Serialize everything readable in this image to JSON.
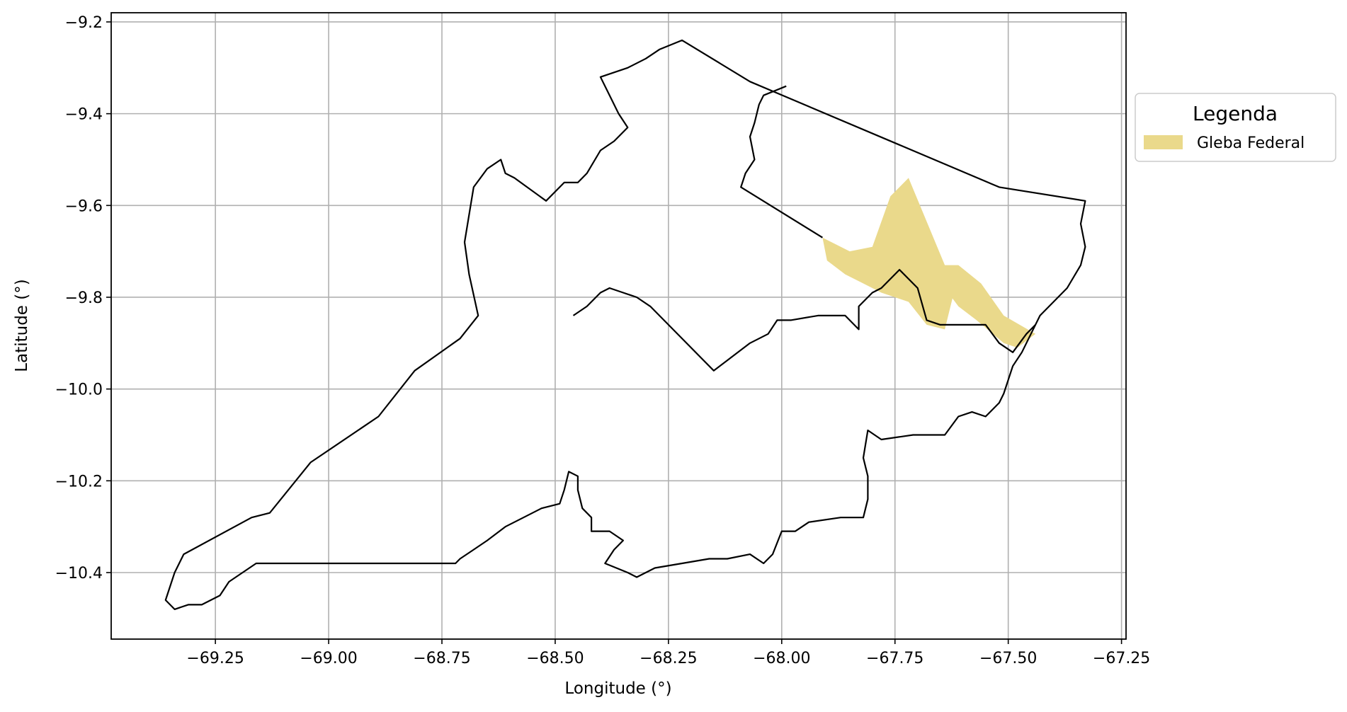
{
  "chart_data": {
    "type": "map",
    "xlabel": "Longitude (°)",
    "ylabel": "Latitude (°)",
    "xlim": [
      -69.48,
      -67.24
    ],
    "ylim": [
      -10.545,
      -9.18
    ],
    "x_ticks": [
      -69.25,
      -69.0,
      -68.75,
      -68.5,
      -68.25,
      -68.0,
      -67.75,
      -67.5,
      -67.25
    ],
    "x_tick_labels": [
      "−69.25",
      "−69.00",
      "−68.75",
      "−68.50",
      "−68.25",
      "−68.00",
      "−67.75",
      "−67.50",
      "−67.25"
    ],
    "y_ticks": [
      -9.2,
      -9.4,
      -9.6,
      -9.8,
      -10.0,
      -10.2,
      -10.4
    ],
    "y_tick_labels": [
      "−9.2",
      "−9.4",
      "−9.6",
      "−9.8",
      "−10.0",
      "−10.2",
      "−10.4"
    ],
    "grid": true,
    "legend": {
      "title": "Legenda",
      "placement": "outside-right-top",
      "entries": [
        {
          "label": "Gleba Federal",
          "color": "#ead98b"
        }
      ]
    },
    "boundary": [
      [
        -69.36,
        -10.46
      ],
      [
        -69.34,
        -10.4
      ],
      [
        -69.32,
        -10.36
      ],
      [
        -69.17,
        -10.28
      ],
      [
        -69.13,
        -10.27
      ],
      [
        -69.04,
        -10.16
      ],
      [
        -68.89,
        -10.06
      ],
      [
        -68.81,
        -9.96
      ],
      [
        -68.71,
        -9.89
      ],
      [
        -68.67,
        -9.84
      ],
      [
        -68.69,
        -9.75
      ],
      [
        -68.7,
        -9.68
      ],
      [
        -68.68,
        -9.56
      ],
      [
        -68.65,
        -9.52
      ],
      [
        -68.62,
        -9.5
      ],
      [
        -68.61,
        -9.53
      ],
      [
        -68.59,
        -9.54
      ],
      [
        -68.52,
        -9.59
      ],
      [
        -68.48,
        -9.55
      ],
      [
        -68.45,
        -9.55
      ],
      [
        -68.43,
        -9.53
      ],
      [
        -68.4,
        -9.48
      ],
      [
        -68.37,
        -9.46
      ],
      [
        -68.34,
        -9.43
      ],
      [
        -68.36,
        -9.4
      ],
      [
        -68.4,
        -9.32
      ],
      [
        -68.34,
        -9.3
      ],
      [
        -68.3,
        -9.28
      ],
      [
        -68.27,
        -9.26
      ],
      [
        -68.22,
        -9.24
      ],
      [
        -68.07,
        -9.33
      ],
      [
        -67.52,
        -9.56
      ],
      [
        -67.33,
        -9.59
      ],
      [
        -67.34,
        -9.64
      ],
      [
        -67.33,
        -9.69
      ],
      [
        -67.34,
        -9.73
      ],
      [
        -67.37,
        -9.78
      ],
      [
        -67.4,
        -9.81
      ],
      [
        -67.43,
        -9.84
      ],
      [
        -67.45,
        -9.88
      ],
      [
        -67.47,
        -9.92
      ],
      [
        -67.49,
        -9.95
      ],
      [
        -67.5,
        -9.98
      ],
      [
        -67.51,
        -10.01
      ],
      [
        -67.52,
        -10.03
      ],
      [
        -67.55,
        -10.06
      ],
      [
        -67.58,
        -10.05
      ],
      [
        -67.61,
        -10.06
      ],
      [
        -67.64,
        -10.1
      ],
      [
        -67.71,
        -10.1
      ],
      [
        -67.78,
        -10.11
      ],
      [
        -67.81,
        -10.09
      ],
      [
        -67.82,
        -10.15
      ],
      [
        -67.81,
        -10.19
      ],
      [
        -67.81,
        -10.24
      ],
      [
        -67.82,
        -10.28
      ],
      [
        -67.87,
        -10.28
      ],
      [
        -67.94,
        -10.29
      ],
      [
        -67.97,
        -10.31
      ],
      [
        -68.0,
        -10.31
      ],
      [
        -68.02,
        -10.36
      ],
      [
        -68.04,
        -10.38
      ],
      [
        -68.07,
        -10.36
      ],
      [
        -68.12,
        -10.37
      ],
      [
        -68.16,
        -10.37
      ],
      [
        -68.22,
        -10.38
      ],
      [
        -68.28,
        -10.39
      ],
      [
        -68.3,
        -10.4
      ],
      [
        -68.32,
        -10.41
      ],
      [
        -68.34,
        -10.4
      ],
      [
        -68.39,
        -10.38
      ],
      [
        -68.37,
        -10.35
      ],
      [
        -68.35,
        -10.33
      ],
      [
        -68.38,
        -10.31
      ],
      [
        -68.42,
        -10.31
      ],
      [
        -68.42,
        -10.28
      ],
      [
        -68.44,
        -10.26
      ],
      [
        -68.45,
        -10.22
      ],
      [
        -68.45,
        -10.19
      ],
      [
        -68.47,
        -10.18
      ],
      [
        -68.48,
        -10.22
      ],
      [
        -68.49,
        -10.25
      ],
      [
        -68.53,
        -10.26
      ],
      [
        -68.57,
        -10.28
      ],
      [
        -68.61,
        -10.3
      ],
      [
        -68.65,
        -10.33
      ],
      [
        -68.68,
        -10.35
      ],
      [
        -68.71,
        -10.37
      ],
      [
        -68.72,
        -10.38
      ],
      [
        -69.16,
        -10.38
      ],
      [
        -69.19,
        -10.4
      ],
      [
        -69.22,
        -10.42
      ],
      [
        -69.24,
        -10.45
      ],
      [
        -69.28,
        -10.47
      ],
      [
        -69.31,
        -10.47
      ],
      [
        -69.34,
        -10.48
      ],
      [
        -69.36,
        -10.46
      ]
    ],
    "inner_boundary": [
      [
        -68.46,
        -9.84
      ],
      [
        -68.43,
        -9.82
      ],
      [
        -68.4,
        -9.79
      ],
      [
        -68.38,
        -9.78
      ],
      [
        -68.35,
        -9.79
      ],
      [
        -68.32,
        -9.8
      ],
      [
        -68.29,
        -9.82
      ],
      [
        -68.15,
        -9.96
      ],
      [
        -68.11,
        -9.93
      ],
      [
        -68.07,
        -9.9
      ],
      [
        -68.03,
        -9.88
      ],
      [
        -68.01,
        -9.85
      ],
      [
        -67.98,
        -9.85
      ],
      [
        -67.92,
        -9.84
      ],
      [
        -67.86,
        -9.84
      ],
      [
        -67.83,
        -9.87
      ],
      [
        -67.83,
        -9.82
      ],
      [
        -67.8,
        -9.79
      ],
      [
        -67.78,
        -9.78
      ],
      [
        -67.74,
        -9.74
      ],
      [
        -67.7,
        -9.78
      ],
      [
        -67.68,
        -9.85
      ],
      [
        -67.65,
        -9.86
      ],
      [
        -67.62,
        -9.86
      ],
      [
        -67.59,
        -9.86
      ],
      [
        -67.55,
        -9.86
      ],
      [
        -67.52,
        -9.9
      ],
      [
        -67.49,
        -9.92
      ],
      [
        -67.46,
        -9.88
      ],
      [
        -67.44,
        -9.86
      ]
    ],
    "upper_inner_boundary": [
      [
        -67.91,
        -9.67
      ],
      [
        -68.09,
        -9.56
      ],
      [
        -68.08,
        -9.53
      ],
      [
        -68.06,
        -9.5
      ],
      [
        -68.07,
        -9.45
      ],
      [
        -68.06,
        -9.42
      ],
      [
        -68.05,
        -9.38
      ],
      [
        -68.04,
        -9.36
      ],
      [
        -67.99,
        -9.34
      ]
    ],
    "gleba_federal": [
      [
        -67.91,
        -9.67
      ],
      [
        -67.85,
        -9.7
      ],
      [
        -67.8,
        -9.69
      ],
      [
        -67.76,
        -9.58
      ],
      [
        -67.72,
        -9.54
      ],
      [
        -67.64,
        -9.73
      ],
      [
        -67.61,
        -9.73
      ],
      [
        -67.56,
        -9.77
      ],
      [
        -67.51,
        -9.84
      ],
      [
        -67.44,
        -9.88
      ],
      [
        -67.48,
        -9.91
      ],
      [
        -67.51,
        -9.9
      ],
      [
        -67.57,
        -9.85
      ],
      [
        -67.61,
        -9.82
      ],
      [
        -67.67,
        -9.74
      ],
      [
        -67.62,
        -9.79
      ],
      [
        -67.64,
        -9.87
      ],
      [
        -67.68,
        -9.86
      ],
      [
        -67.72,
        -9.81
      ],
      [
        -67.78,
        -9.79
      ],
      [
        -67.82,
        -9.77
      ],
      [
        -67.86,
        -9.75
      ],
      [
        -67.9,
        -9.72
      ]
    ]
  }
}
